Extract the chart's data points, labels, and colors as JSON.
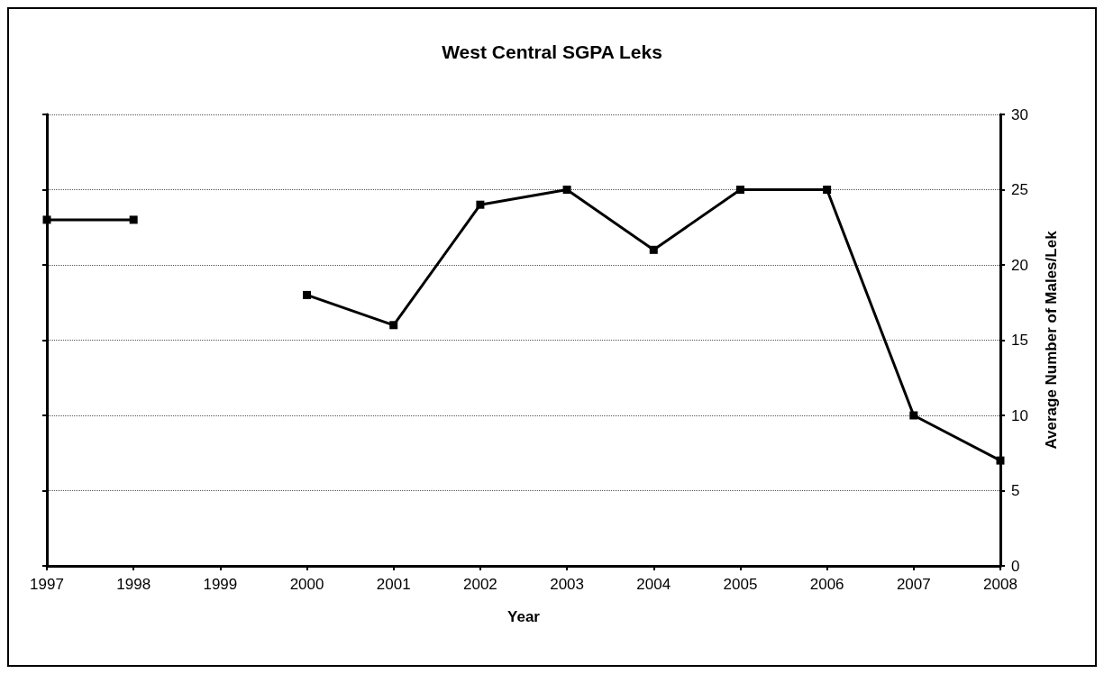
{
  "chart_data": {
    "type": "line",
    "title": "West Central SGPA Leks",
    "xlabel": "Year",
    "ylabel": "Average Number of Males/Lek",
    "categories": [
      "1997",
      "1998",
      "1999",
      "2000",
      "2001",
      "2002",
      "2003",
      "2004",
      "2005",
      "2006",
      "2007",
      "2008"
    ],
    "series": [
      {
        "color": "#000000",
        "values": [
          23,
          23,
          null,
          18,
          16,
          24,
          25,
          21,
          25,
          25,
          10,
          7
        ]
      }
    ],
    "ylim": [
      0,
      30
    ],
    "yticks": [
      0,
      5,
      10,
      15,
      20,
      25,
      30
    ],
    "grid": "y",
    "marker": "square",
    "line_style": "solid"
  }
}
